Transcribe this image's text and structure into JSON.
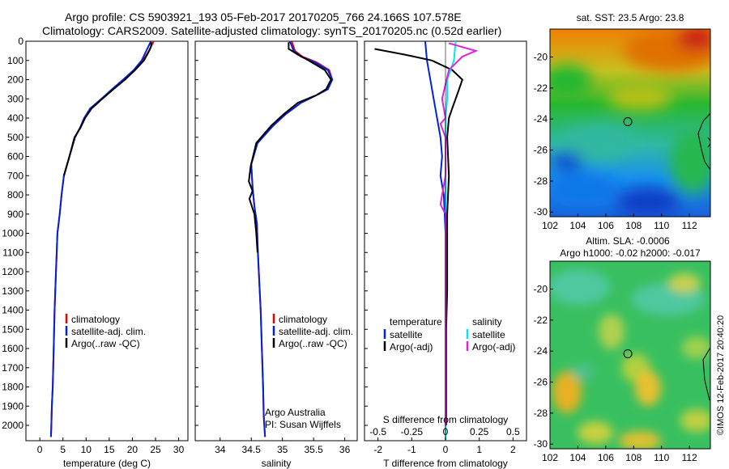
{
  "header": {
    "line1": "Argo profile: CS 5903921_193 05-Feb-2017 20170205_766 24.166S 107.578E",
    "line2": "Climatology: CARS2009. Satellite-adjusted climatology: synTS_20170205.nc (0.52d earlier)"
  },
  "colors": {
    "climatology": "#e60000",
    "satellite": "#0022e0",
    "argo": "#000000",
    "sat_salinity": "#00e6f0",
    "argo_salinity": "#e020e0"
  },
  "chart_data": [
    {
      "type": "line",
      "xlabel": "temperature (deg C)",
      "ylabel": "",
      "xlim": [
        -3,
        32
      ],
      "ylim": [
        2080,
        0
      ],
      "xticks": [
        0,
        5,
        10,
        15,
        20,
        25,
        30
      ],
      "yticks": [
        0,
        100,
        200,
        300,
        400,
        500,
        600,
        700,
        800,
        900,
        1000,
        1100,
        1200,
        1300,
        1400,
        1500,
        1600,
        1700,
        1800,
        1900,
        2000
      ],
      "legend": [
        "climatology",
        "satellite-adj. clim.",
        "Argo(..raw -QC)"
      ],
      "series": [
        {
          "name": "climatology",
          "x": [
            24.6,
            24.2,
            23.6,
            22.3,
            20.5,
            18.2,
            15.8,
            13.4,
            10.9,
            9.6,
            8.7,
            7.6,
            6.4,
            5.2,
            4.7,
            4.3,
            3.8,
            3.5,
            3.2,
            3.0,
            2.8,
            2.6,
            2.5,
            2.4
          ],
          "y": [
            0,
            20,
            50,
            100,
            150,
            200,
            250,
            300,
            350,
            400,
            450,
            500,
            600,
            700,
            800,
            900,
            1000,
            1200,
            1400,
            1600,
            1800,
            1900,
            2000,
            2060
          ]
        },
        {
          "name": "satellite-adj. clim.",
          "x": [
            24.0,
            23.6,
            23.0,
            22.0,
            20.3,
            18.0,
            15.6,
            13.3,
            10.9,
            9.6,
            8.7,
            7.6,
            6.4,
            5.2,
            4.7,
            4.3,
            3.8,
            3.5,
            3.2,
            3.0,
            2.8,
            2.6,
            2.5,
            2.4
          ],
          "y": [
            0,
            20,
            50,
            100,
            150,
            200,
            250,
            300,
            350,
            400,
            450,
            500,
            600,
            700,
            800,
            900,
            1000,
            1200,
            1400,
            1600,
            1800,
            1900,
            2000,
            2060
          ]
        },
        {
          "name": "Argo(..raw -QC)",
          "x": [
            24.1,
            24.0,
            23.4,
            22.5,
            20.6,
            18.4,
            15.9,
            13.5,
            11.2,
            9.8,
            8.8,
            7.5,
            6.4,
            5.2
          ],
          "y": [
            5,
            30,
            60,
            100,
            150,
            200,
            250,
            300,
            350,
            400,
            450,
            500,
            600,
            700
          ]
        }
      ]
    },
    {
      "type": "line",
      "xlabel": "salinity",
      "xlim": [
        33.6,
        36.2
      ],
      "ylim": [
        2080,
        0
      ],
      "xticks": [
        34,
        34.5,
        35,
        35.5,
        36
      ],
      "legend": [
        "climatology",
        "satellite-adj. clim.",
        "Argo(..raw -QC)"
      ],
      "annotation": [
        "Argo Australia",
        "PI: Susan Wijffels"
      ],
      "series": [
        {
          "name": "climatology",
          "x": [
            35.15,
            35.2,
            35.32,
            35.55,
            35.75,
            35.8,
            35.72,
            35.55,
            35.3,
            35.05,
            34.85,
            34.6,
            34.5,
            34.52,
            34.55,
            34.59,
            34.6,
            34.62,
            34.65,
            34.67,
            34.69,
            34.7,
            34.72
          ],
          "y": [
            0,
            50,
            80,
            110,
            150,
            200,
            250,
            280,
            320,
            380,
            440,
            530,
            640,
            760,
            860,
            950,
            1050,
            1200,
            1400,
            1600,
            1800,
            1950,
            2060
          ]
        },
        {
          "name": "satellite-adj. clim.",
          "x": [
            35.12,
            35.18,
            35.3,
            35.52,
            35.73,
            35.8,
            35.73,
            35.55,
            35.3,
            35.05,
            34.85,
            34.6,
            34.5,
            34.52,
            34.55,
            34.59,
            34.6,
            34.62,
            34.65,
            34.67,
            34.69,
            34.7,
            34.72
          ],
          "y": [
            0,
            50,
            80,
            110,
            150,
            200,
            250,
            280,
            320,
            380,
            440,
            530,
            640,
            760,
            860,
            950,
            1050,
            1200,
            1400,
            1600,
            1800,
            1950,
            2060
          ]
        },
        {
          "name": "Argo(..raw -QC)",
          "x": [
            35.1,
            35.1,
            35.25,
            35.42,
            35.68,
            35.78,
            35.7,
            35.55,
            35.25,
            35.02,
            34.82,
            34.58,
            34.49,
            34.46,
            34.52,
            34.47,
            34.55,
            34.58,
            34.6
          ],
          "y": [
            5,
            40,
            70,
            100,
            150,
            200,
            250,
            280,
            320,
            380,
            440,
            530,
            650,
            730,
            780,
            820,
            900,
            1000,
            1100
          ]
        }
      ]
    },
    {
      "type": "line",
      "xlabel": "T difference from climatology",
      "xlabel_top": "S difference from climatology",
      "xlim": [
        -2.4,
        2.4
      ],
      "ylim": [
        2080,
        0
      ],
      "xticks": [
        -2,
        -1,
        0,
        1,
        2
      ],
      "xticks_top": [
        "-0.5",
        "-0.25",
        "0",
        "0.25",
        "0.5"
      ],
      "legend_headers": [
        "temperature",
        "salinity"
      ],
      "legend": [
        "satellite",
        "Argo(-adj)",
        "satellite",
        "Argo(-adj)"
      ],
      "series": [
        {
          "name": "satellite",
          "x": [
            -0.6,
            -0.55,
            -0.45,
            -0.35,
            -0.25,
            -0.15,
            -0.1,
            -0.15,
            -0.05,
            0,
            0
          ],
          "y": [
            0,
            100,
            200,
            300,
            400,
            500,
            600,
            700,
            800,
            1000,
            2080
          ]
        },
        {
          "name": "Argo(-adj)",
          "x": [
            -2.1,
            -1.2,
            -0.4,
            0.2,
            0.5,
            0.4,
            0.3,
            0.2,
            0.1,
            0.05,
            0.1,
            0.05,
            0.05,
            0.05,
            0.02,
            0.02
          ],
          "y": [
            40,
            70,
            100,
            150,
            200,
            250,
            300,
            350,
            400,
            500,
            700,
            900,
            1100,
            1300,
            1500,
            2000
          ]
        },
        {
          "name": "satellite",
          "x": [
            0.3,
            0.25,
            0.05,
            0.05,
            0,
            0,
            0,
            0
          ],
          "y": [
            0,
            100,
            200,
            300,
            400,
            500,
            700,
            2080
          ]
        },
        {
          "name": "Argo(-adj)",
          "x": [
            0.1,
            0.9,
            0.5,
            0.1,
            -0.1,
            0.0,
            -0.15,
            0.0,
            0.0,
            -0.15,
            0.0,
            0.0,
            0.0
          ],
          "y": [
            10,
            50,
            80,
            150,
            300,
            400,
            430,
            500,
            700,
            850,
            900,
            1000,
            2000
          ]
        }
      ]
    },
    {
      "type": "heatmap",
      "title": "sat. SST: 23.5  Argo: 23.8",
      "xticks": [
        102,
        104,
        106,
        108,
        110,
        112
      ],
      "yticks": [
        -20,
        -22,
        -24,
        -26,
        -28,
        -30
      ],
      "xlim": [
        102,
        113.5
      ],
      "ylim": [
        -30.3,
        -18.2
      ],
      "marker": {
        "lon": 107.58,
        "lat": -24.17
      }
    },
    {
      "type": "heatmap",
      "title": "Altim. SLA: -0.0006",
      "subtitle": "Argo h1000: -0.02 h2000: -0.017",
      "xticks": [
        102,
        104,
        106,
        108,
        110,
        112
      ],
      "yticks": [
        -20,
        -22,
        -24,
        -26,
        -28,
        -30
      ],
      "xlim": [
        102,
        113.5
      ],
      "ylim": [
        -30.3,
        -18.2
      ],
      "marker": {
        "lon": 107.58,
        "lat": -24.17
      }
    }
  ],
  "watermark": "©IMOS 12-Feb-2017 20:40:20"
}
